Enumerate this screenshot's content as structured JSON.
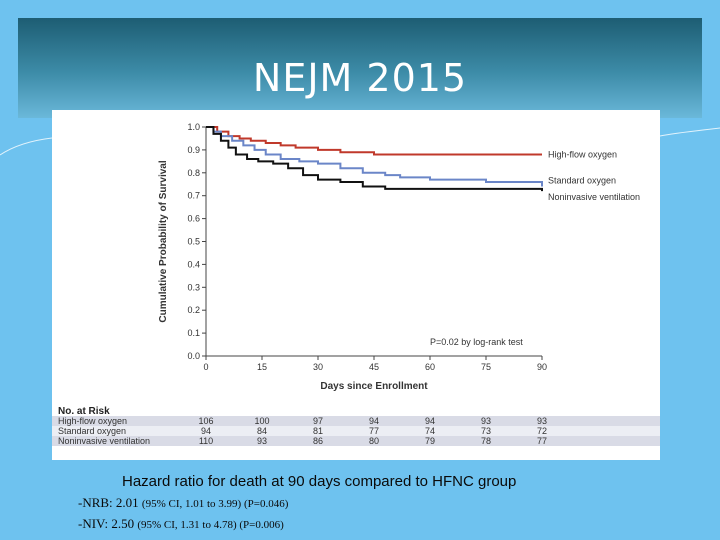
{
  "slide": {
    "title": "NEJM 2015"
  },
  "hazard": {
    "heading": "Hazard ratio for death at 90 days compared to HFNC group",
    "lines": [
      {
        "label": "-NRB: 2.01",
        "ci": "(95% CI, 1.01 to 3.99) (P=0.046)"
      },
      {
        "label": "-NIV: 2.50",
        "ci": "(95% CI, 1.31 to 4.78)  (P=0.006)"
      }
    ]
  },
  "colors": {
    "background": "#6ec2ef",
    "high_flow": "#c0392b",
    "standard": "#6b86c8",
    "niv": "#111111",
    "risk_row_shade": "#d9dbe6"
  },
  "chart_data": {
    "type": "line",
    "title": "",
    "xlabel": "Days since Enrollment",
    "ylabel": "Cumulative Probability of Survival",
    "xlim": [
      0,
      90
    ],
    "ylim": [
      0,
      1.0
    ],
    "xticks": [
      0,
      15,
      30,
      45,
      60,
      75,
      90
    ],
    "yticks": [
      "0.0",
      "0.1",
      "0.2",
      "0.3",
      "0.4",
      "0.5",
      "0.6",
      "0.7",
      "0.8",
      "0.9",
      "1.0"
    ],
    "annotation": "P=0.02 by log-rank test",
    "series": [
      {
        "name": "High-flow oxygen",
        "color": "#c0392b",
        "points": [
          [
            0,
            1.0
          ],
          [
            3,
            0.98
          ],
          [
            6,
            0.96
          ],
          [
            9,
            0.95
          ],
          [
            12,
            0.94
          ],
          [
            16,
            0.93
          ],
          [
            20,
            0.92
          ],
          [
            24,
            0.91
          ],
          [
            30,
            0.9
          ],
          [
            36,
            0.89
          ],
          [
            45,
            0.88
          ],
          [
            55,
            0.88
          ],
          [
            65,
            0.88
          ],
          [
            75,
            0.88
          ],
          [
            90,
            0.88
          ]
        ]
      },
      {
        "name": "Standard oxygen",
        "color": "#6b86c8",
        "points": [
          [
            0,
            1.0
          ],
          [
            2,
            0.98
          ],
          [
            4,
            0.96
          ],
          [
            7,
            0.94
          ],
          [
            10,
            0.92
          ],
          [
            13,
            0.9
          ],
          [
            16,
            0.88
          ],
          [
            20,
            0.86
          ],
          [
            25,
            0.85
          ],
          [
            30,
            0.84
          ],
          [
            36,
            0.82
          ],
          [
            42,
            0.8
          ],
          [
            48,
            0.79
          ],
          [
            52,
            0.78
          ],
          [
            60,
            0.77
          ],
          [
            75,
            0.76
          ],
          [
            85,
            0.76
          ],
          [
            90,
            0.74
          ]
        ]
      },
      {
        "name": "Noninvasive ventilation",
        "color": "#111111",
        "points": [
          [
            0,
            1.0
          ],
          [
            2,
            0.97
          ],
          [
            4,
            0.94
          ],
          [
            6,
            0.91
          ],
          [
            8,
            0.88
          ],
          [
            11,
            0.86
          ],
          [
            14,
            0.85
          ],
          [
            18,
            0.84
          ],
          [
            22,
            0.82
          ],
          [
            26,
            0.79
          ],
          [
            30,
            0.77
          ],
          [
            36,
            0.76
          ],
          [
            42,
            0.74
          ],
          [
            48,
            0.73
          ],
          [
            60,
            0.73
          ],
          [
            75,
            0.73
          ],
          [
            85,
            0.73
          ],
          [
            90,
            0.72
          ]
        ]
      }
    ],
    "risk_table": {
      "title": "No. at Risk",
      "rows": [
        {
          "label": "High-flow oxygen",
          "values": [
            "106",
            "100",
            "97",
            "94",
            "94",
            "93",
            "93"
          ]
        },
        {
          "label": "Standard oxygen",
          "values": [
            "94",
            "84",
            "81",
            "77",
            "74",
            "73",
            "72"
          ]
        },
        {
          "label": "Noninvasive ventilation",
          "values": [
            "110",
            "93",
            "86",
            "80",
            "79",
            "78",
            "77"
          ]
        }
      ]
    }
  }
}
